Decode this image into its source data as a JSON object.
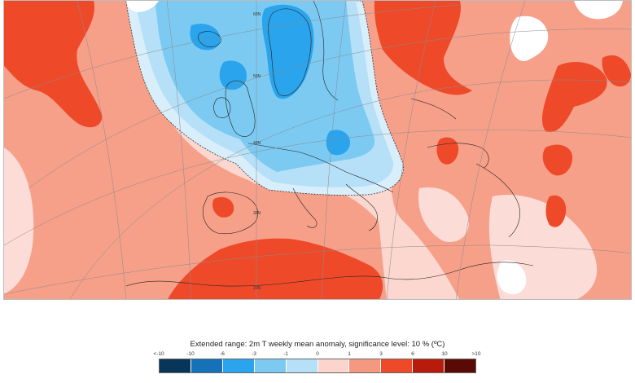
{
  "legend": {
    "title": "Extended range: 2m T weekly mean anomaly, significance level: 10 % (ºC)",
    "ticks": [
      "<-10",
      "-10",
      "-6",
      "-3",
      "-1",
      "0",
      "1",
      "3",
      "6",
      "10",
      ">10"
    ],
    "colors": [
      "#08365a",
      "#1672b8",
      "#2aa4ec",
      "#7ccaf2",
      "#b6e0f8",
      "#d8eefa",
      "#fbd4cc",
      "#f59880",
      "#ee4a2a",
      "#b81a0c",
      "#5a0a04"
    ]
  },
  "map": {
    "lat_labels": [
      "60N",
      "50N",
      "40N",
      "30N",
      "20N"
    ],
    "ocean_color": "#fbd7cf"
  }
}
